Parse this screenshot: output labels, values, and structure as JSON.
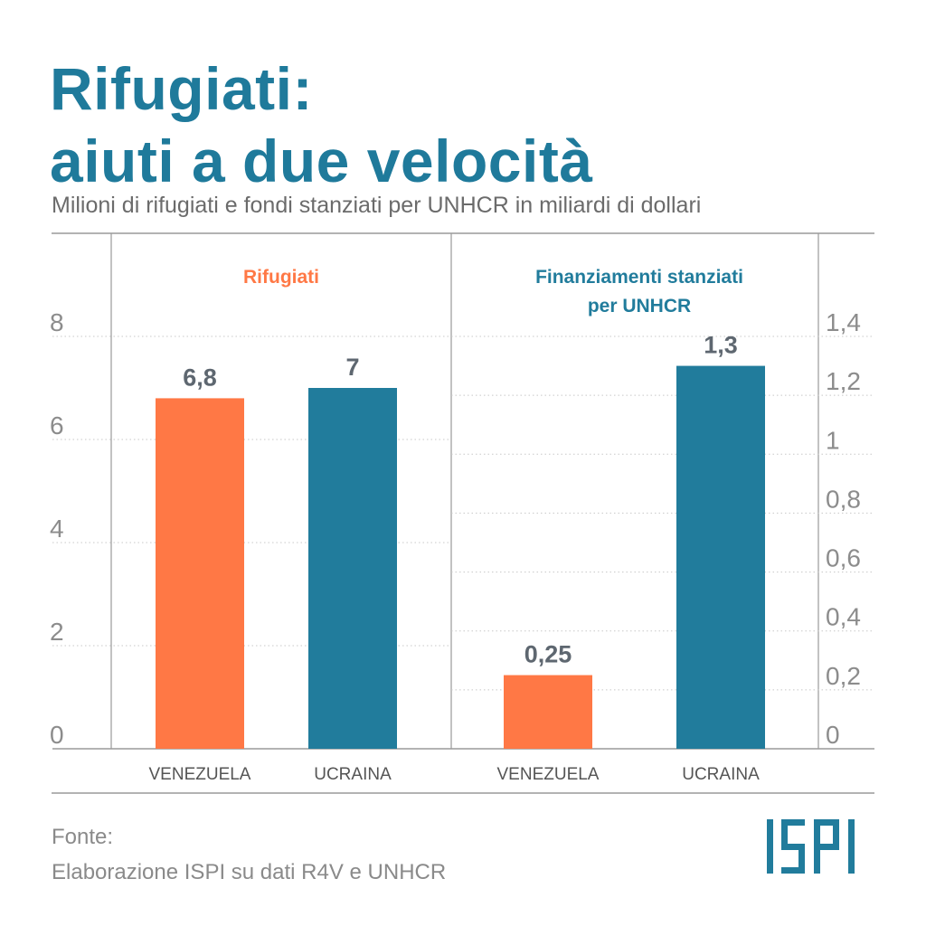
{
  "header": {
    "title_line1": "Rifugiati:",
    "title_line2": "aiuti a due velocità",
    "subtitle": "Milioni di rifugiati e fondi stanziati per UNHCR in miliardi di dollari"
  },
  "footer": {
    "source_label": "Fonte:",
    "source_text": "Elaborazione ISPI su dati R4V e UNHCR",
    "logo_text": "ISPI"
  },
  "colors": {
    "accent_orange": "#ff7845",
    "accent_teal": "#217c9c",
    "title": "#1f7a9b",
    "value_label": "#5e6770",
    "axis_text": "#8c8c8c"
  },
  "chart_data": [
    {
      "type": "bar",
      "title": "Rifugiati",
      "categories": [
        "VENEZUELA",
        "UCRAINA"
      ],
      "values": [
        6.8,
        7
      ],
      "value_labels": [
        "6,8",
        "7"
      ],
      "yticks": [
        "0",
        "2",
        "4",
        "6",
        "8"
      ],
      "ylim": [
        0,
        8
      ],
      "axis_side": "left",
      "colors": [
        "#ff7845",
        "#217c9c"
      ]
    },
    {
      "type": "bar",
      "title": "Finanziamenti stanziati per UNHCR",
      "title_lines": [
        "Finanziamenti stanziati",
        "per UNHCR"
      ],
      "categories": [
        "VENEZUELA",
        "UCRAINA"
      ],
      "values": [
        0.25,
        1.3
      ],
      "value_labels": [
        "0,25",
        "1,3"
      ],
      "yticks": [
        "0",
        "0,2",
        "0,4",
        "0,6",
        "0,8",
        "1",
        "1,2",
        "1,4"
      ],
      "ylim": [
        0,
        1.4
      ],
      "axis_side": "right",
      "colors": [
        "#ff7845",
        "#217c9c"
      ]
    }
  ]
}
